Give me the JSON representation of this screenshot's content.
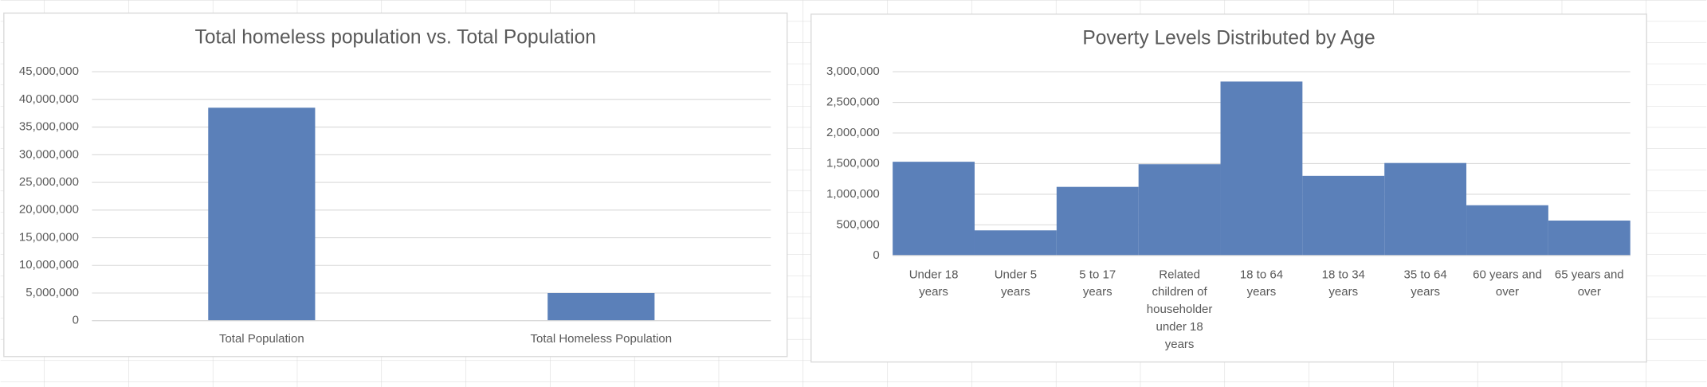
{
  "chart_data": [
    {
      "type": "bar",
      "title": "Total homeless population vs. Total  Population",
      "categories": [
        "Total Population",
        "Total Homeless Population"
      ],
      "values": [
        38500000,
        5000000
      ],
      "color": "#5b80b9",
      "ylim": [
        0,
        45000000
      ],
      "yticks": [
        0,
        {
          "value": 5000000,
          "label": "5,000,000"
        },
        {
          "value": 10000000,
          "label": "10,000,000"
        },
        {
          "value": 15000000,
          "label": "15,000,000"
        },
        {
          "value": 20000000,
          "label": "20,000,000"
        },
        {
          "value": 25000000,
          "label": "25,000,000"
        },
        {
          "value": 30000000,
          "label": "30,000,000"
        },
        {
          "value": 35000000,
          "label": "35,000,000"
        },
        {
          "value": 40000000,
          "label": "40,000,000"
        },
        {
          "value": 45000000,
          "label": "45,000,000"
        }
      ],
      "grid": true
    },
    {
      "type": "bar",
      "title": "Poverty Levels Distributed by Age",
      "categories": [
        "Under 18 years",
        "Under 5 years",
        "5 to 17 years",
        "Related children of householder under 18 years",
        "18 to 64 years",
        "18 to 34 years",
        "35 to 64 years",
        "60 years and over",
        "65 years and over"
      ],
      "values": [
        1530000,
        410000,
        1120000,
        1490000,
        2840000,
        1300000,
        1510000,
        820000,
        570000
      ],
      "color": "#5b80b9",
      "ylim": [
        0,
        3000000
      ],
      "yticks": [
        0,
        {
          "value": 500000,
          "label": "500,000"
        },
        {
          "value": 1000000,
          "label": "1,000,000"
        },
        {
          "value": 1500000,
          "label": "1,500,000"
        },
        {
          "value": 2000000,
          "label": "2,000,000"
        },
        {
          "value": 2500000,
          "label": "2,500,000"
        },
        {
          "value": 3000000,
          "label": "3,000,000"
        }
      ],
      "grid": true
    }
  ]
}
